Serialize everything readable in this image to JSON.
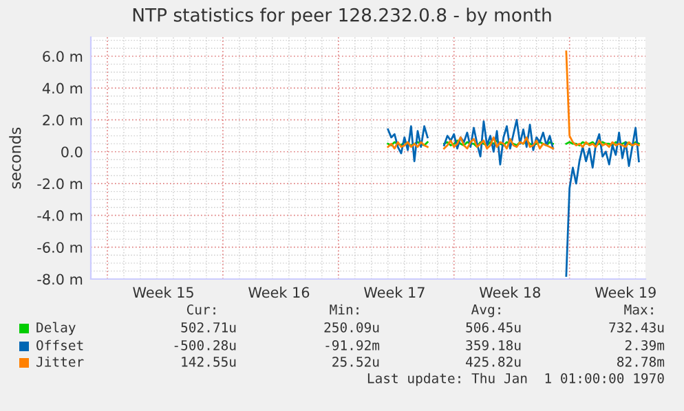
{
  "chart_data": {
    "type": "line",
    "title": "NTP statistics for peer 128.232.0.8 - by month",
    "ylabel": "seconds",
    "categories": [
      null,
      null,
      null,
      null,
      null,
      null,
      null,
      null,
      null,
      null,
      null,
      null,
      null,
      null,
      null,
      null,
      null,
      null,
      null,
      null,
      null,
      null,
      "Week 15",
      null,
      null,
      null,
      null,
      null,
      null,
      null,
      null,
      null,
      null,
      null,
      null,
      null,
      null,
      null,
      null,
      null,
      null,
      null,
      null,
      null,
      null,
      null,
      null,
      null,
      null,
      null,
      null,
      null,
      null,
      null,
      null,
      null,
      null,
      "Week 16",
      null,
      null,
      null,
      null,
      null,
      null,
      null,
      null,
      null,
      null,
      null,
      null,
      null,
      null,
      null,
      null,
      null,
      null,
      null,
      null,
      null,
      null,
      null,
      null,
      null,
      null,
      null,
      null,
      null,
      null,
      null,
      null,
      null,
      null,
      "Week 17",
      null,
      null,
      null,
      null,
      null,
      null,
      null,
      null,
      null,
      null,
      null,
      null,
      null,
      null,
      null,
      null,
      null,
      null,
      null,
      null,
      null,
      null,
      null,
      null,
      null,
      null,
      null,
      null,
      null,
      null,
      null,
      null,
      null,
      null,
      "Week 18",
      null,
      null,
      null,
      null,
      null,
      null,
      null,
      null,
      null,
      null,
      null,
      null,
      null,
      null,
      null,
      null,
      null,
      null,
      null,
      null,
      null,
      null,
      null,
      null,
      null,
      null,
      null,
      null,
      null,
      null,
      null,
      null,
      null,
      null,
      "Week 19",
      null,
      null,
      null,
      null,
      null,
      null
    ],
    "series": [
      {
        "name": "Delay",
        "color": "#00cc00",
        "values": [
          null,
          null,
          null,
          null,
          null,
          null,
          null,
          null,
          null,
          null,
          null,
          null,
          null,
          null,
          null,
          null,
          null,
          null,
          null,
          null,
          null,
          null,
          null,
          null,
          null,
          null,
          null,
          null,
          null,
          null,
          null,
          null,
          null,
          null,
          null,
          null,
          null,
          null,
          null,
          null,
          null,
          null,
          null,
          null,
          null,
          null,
          null,
          null,
          null,
          null,
          null,
          null,
          null,
          null,
          null,
          null,
          null,
          null,
          null,
          null,
          null,
          null,
          null,
          null,
          null,
          null,
          null,
          null,
          null,
          null,
          null,
          null,
          null,
          null,
          null,
          null,
          null,
          null,
          null,
          null,
          null,
          null,
          null,
          null,
          null,
          null,
          null,
          null,
          null,
          null,
          0.5,
          0.4,
          0.6,
          0.5,
          0.4,
          0.6,
          0.5,
          0.4,
          0.5,
          0.6,
          0.5,
          0.4,
          0.6,
          null,
          null,
          null,
          null,
          0.5,
          0.6,
          0.4,
          0.5,
          0.7,
          0.5,
          0.4,
          0.6,
          0.5,
          0.5,
          0.3,
          0.6,
          0.5,
          0.4,
          0.6,
          0.5,
          0.7,
          0.5,
          0.4,
          0.6,
          0.5,
          0.5,
          0.4,
          0.6,
          0.5,
          0.7,
          0.5,
          0.4,
          0.5,
          0.6,
          0.5,
          0.4,
          0.6,
          0.5,
          null,
          null,
          null,
          0.5,
          0.6,
          0.5,
          0.5,
          0.4,
          0.6,
          0.5,
          0.5,
          0.6,
          0.4,
          0.5,
          0.6,
          0.5,
          0.5,
          0.4,
          0.6,
          0.5,
          0.5,
          0.6,
          0.5,
          0.4,
          0.6,
          0.5,
          null,
          null
        ]
      },
      {
        "name": "Offset",
        "color": "#0066b3",
        "values": [
          null,
          null,
          null,
          null,
          null,
          null,
          null,
          null,
          null,
          null,
          null,
          null,
          null,
          null,
          null,
          null,
          null,
          null,
          null,
          null,
          null,
          null,
          null,
          null,
          null,
          null,
          null,
          null,
          null,
          null,
          null,
          null,
          null,
          null,
          null,
          null,
          null,
          null,
          null,
          null,
          null,
          null,
          null,
          null,
          null,
          null,
          null,
          null,
          null,
          null,
          null,
          null,
          null,
          null,
          null,
          null,
          null,
          null,
          null,
          null,
          null,
          null,
          null,
          null,
          null,
          null,
          null,
          null,
          null,
          null,
          null,
          null,
          null,
          null,
          null,
          null,
          null,
          null,
          null,
          null,
          null,
          null,
          null,
          null,
          null,
          null,
          null,
          null,
          null,
          null,
          1.4,
          0.9,
          1.1,
          0.3,
          -0.1,
          0.9,
          0.1,
          1.6,
          -0.6,
          1.3,
          0.3,
          1.6,
          0.9,
          null,
          null,
          null,
          null,
          0.4,
          1.0,
          0.7,
          1.1,
          0.2,
          0.9,
          0.6,
          1.2,
          0.3,
          1.5,
          0.5,
          -0.3,
          1.9,
          0.4,
          1.0,
          0.0,
          1.3,
          -0.8,
          0.9,
          1.6,
          0.2,
          1.1,
          2.0,
          0.5,
          1.4,
          0.3,
          1.7,
          0.1,
          0.9,
          0.6,
          1.2,
          0.4,
          1.0,
          0.2,
          null,
          null,
          null,
          -7.8,
          -2.3,
          -1.0,
          -2.0,
          -0.6,
          0.3,
          -0.6,
          0.2,
          -1.0,
          0.5,
          1.1,
          -0.3,
          0.0,
          -0.8,
          0.4,
          -0.2,
          1.2,
          -0.4,
          0.6,
          -0.9,
          0.3,
          1.5,
          -0.6,
          null,
          null
        ]
      },
      {
        "name": "Jitter",
        "color": "#ff8000",
        "values": [
          null,
          null,
          null,
          null,
          null,
          null,
          null,
          null,
          null,
          null,
          null,
          null,
          null,
          null,
          null,
          null,
          null,
          null,
          null,
          null,
          null,
          null,
          null,
          null,
          null,
          null,
          null,
          null,
          null,
          null,
          null,
          null,
          null,
          null,
          null,
          null,
          null,
          null,
          null,
          null,
          null,
          null,
          null,
          null,
          null,
          null,
          null,
          null,
          null,
          null,
          null,
          null,
          null,
          null,
          null,
          null,
          null,
          null,
          null,
          null,
          null,
          null,
          null,
          null,
          null,
          null,
          null,
          null,
          null,
          null,
          null,
          null,
          null,
          null,
          null,
          null,
          null,
          null,
          null,
          null,
          null,
          null,
          null,
          null,
          null,
          null,
          null,
          null,
          null,
          null,
          0.3,
          0.5,
          0.2,
          0.6,
          0.3,
          0.4,
          0.6,
          0.3,
          0.5,
          0.3,
          0.6,
          0.4,
          0.3,
          null,
          null,
          null,
          null,
          0.2,
          0.4,
          0.7,
          0.3,
          0.5,
          0.9,
          0.4,
          0.2,
          0.6,
          0.8,
          0.3,
          0.5,
          0.7,
          0.2,
          0.4,
          0.9,
          0.3,
          0.6,
          0.5,
          0.2,
          0.8,
          0.4,
          0.3,
          0.6,
          0.5,
          0.9,
          0.3,
          0.4,
          0.7,
          0.2,
          0.5,
          0.4,
          0.3,
          0.2,
          null,
          null,
          null,
          6.3,
          1.0,
          0.6,
          0.4,
          0.5,
          0.3,
          0.6,
          0.4,
          0.5,
          0.3,
          0.7,
          0.4,
          0.5,
          0.3,
          0.6,
          0.4,
          0.5,
          0.4,
          0.3,
          0.6,
          0.4,
          0.5,
          0.4,
          null,
          null
        ]
      }
    ],
    "ylim": [
      -8,
      7.2
    ],
    "yticks": [
      {
        "value": -8,
        "label": "-8.0 m"
      },
      {
        "value": -6,
        "label": "-6.0 m"
      },
      {
        "value": -4,
        "label": "-4.0 m"
      },
      {
        "value": -2,
        "label": "-2.0 m"
      },
      {
        "value": 0,
        "label": "0.0"
      },
      {
        "value": 2,
        "label": "2.0 m"
      },
      {
        "value": 4,
        "label": "4.0 m"
      },
      {
        "value": 6,
        "label": "6.0 m"
      }
    ],
    "grid": true,
    "legend": "bottom",
    "annotations": [
      "Cur:",
      "Min:",
      "Avg:",
      "Max:",
      "502.71u",
      "250.09u",
      "506.45u",
      "732.43u",
      "-500.28u",
      "-91.92m",
      "359.18u",
      "2.39m",
      "142.55u",
      "25.52u",
      "425.82u",
      "82.78m",
      "Last update: Thu Jan  1 01:00:00 1970"
    ]
  }
}
